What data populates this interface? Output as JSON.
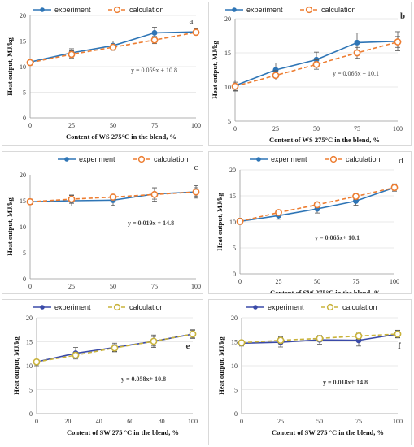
{
  "colors": {
    "experiment_blue": "#2e75b6",
    "calculation_orange": "#ed7d31",
    "experiment_navy": "#3a4aa8",
    "calculation_olive": "#c9b33b"
  },
  "chart_data": [
    {
      "type": "line",
      "panel_letter": "a",
      "xlabel": "Content of WS 275°C  in the blend, %",
      "ylabel": "Heat output, MJ/kg",
      "x": [
        0,
        25,
        50,
        75,
        100
      ],
      "xlim": [
        0,
        100
      ],
      "ylim": [
        0,
        20
      ],
      "yticks": [
        0,
        5,
        10,
        15,
        20
      ],
      "grid": true,
      "legend_position": "top",
      "equation": "y = 0.059x + 10.8",
      "series": [
        {
          "name": "experiment",
          "values": [
            10.9,
            12.7,
            14.1,
            16.6,
            16.8
          ],
          "errors": [
            0.6,
            0.8,
            0.9,
            1.1,
            0.6
          ]
        },
        {
          "name": "calculation",
          "values": [
            10.8,
            12.4,
            13.8,
            15.2,
            16.7
          ],
          "errors": [
            0.4,
            0.7,
            0.6,
            0.7,
            0.5
          ]
        }
      ]
    },
    {
      "type": "line",
      "panel_letter": "b",
      "xlabel": "Content of WS 275°C  in the blend, %",
      "ylabel": "Heat output, MJ/kg",
      "x": [
        0,
        25,
        50,
        75,
        100
      ],
      "xlim": [
        0,
        100
      ],
      "ylim": [
        5,
        20
      ],
      "yticks": [
        5,
        10,
        15,
        20
      ],
      "grid": true,
      "legend_position": "top",
      "equation": "y = 0.066x + 10.1",
      "series": [
        {
          "name": "experiment",
          "values": [
            10.2,
            12.5,
            14.0,
            16.5,
            16.7
          ],
          "errors": [
            0.8,
            1.0,
            1.1,
            1.4,
            1.4
          ]
        },
        {
          "name": "calculation",
          "values": [
            10.1,
            11.7,
            13.3,
            15.0,
            16.6
          ],
          "errors": [
            0.6,
            0.7,
            0.7,
            0.8,
            0.8
          ]
        }
      ]
    },
    {
      "type": "line",
      "panel_letter": "c",
      "xlabel": "Content of WS 275° in the blend, %",
      "ylabel": "Heat output, MJ/kg",
      "x": [
        0,
        25,
        50,
        75,
        100
      ],
      "xlim": [
        0,
        100
      ],
      "ylim": [
        0,
        20
      ],
      "yticks": [
        0,
        5,
        10,
        15,
        20
      ],
      "grid": false,
      "legend_position": "top",
      "equation": "y = 0.019x + 14.8",
      "series": [
        {
          "name": "experiment",
          "values": [
            14.8,
            15.0,
            15.1,
            16.3,
            16.7
          ],
          "errors": [
            0.5,
            1.0,
            1.0,
            1.0,
            1.2
          ]
        },
        {
          "name": "calculation",
          "values": [
            14.8,
            15.3,
            15.7,
            16.2,
            16.7
          ],
          "errors": [
            0.4,
            0.8,
            0.5,
            1.3,
            0.8
          ]
        }
      ]
    },
    {
      "type": "line",
      "panel_letter": "d",
      "xlabel": "Content of SW 275°C in the blend, %",
      "ylabel": "Heat output, MJ/kg",
      "x": [
        0,
        25,
        50,
        75,
        100
      ],
      "xlim": [
        0,
        100
      ],
      "ylim": [
        0,
        20
      ],
      "yticks": [
        0,
        5,
        10,
        15,
        20
      ],
      "grid": true,
      "legend_position": "top",
      "equation": "y = 0.065x+ 10.1",
      "series": [
        {
          "name": "experiment",
          "values": [
            10.1,
            11.2,
            12.5,
            14.0,
            16.6
          ],
          "errors": [
            0.6,
            0.7,
            0.8,
            0.8,
            0.7
          ]
        },
        {
          "name": "calculation",
          "values": [
            10.1,
            11.8,
            13.3,
            14.9,
            16.6
          ],
          "errors": [
            0.4,
            0.5,
            0.5,
            0.6,
            0.5
          ]
        }
      ]
    },
    {
      "type": "line",
      "panel_letter": "e",
      "xlabel": "Content of SW 275 °C in the blend, %",
      "ylabel": "Heat output, MJ/kg",
      "x": [
        0,
        25,
        50,
        75,
        100
      ],
      "xticks": [
        0,
        20,
        40,
        60,
        80,
        100
      ],
      "xlim": [
        0,
        100
      ],
      "ylim": [
        0,
        20
      ],
      "yticks": [
        0,
        5,
        10,
        15,
        20
      ],
      "grid": true,
      "legend_position": "top",
      "equation": "y = 0.058x+ 10.8",
      "series": [
        {
          "name": "experiment",
          "values": [
            10.8,
            12.6,
            13.8,
            15.1,
            16.6
          ],
          "errors": [
            0.8,
            1.2,
            0.9,
            1.0,
            0.8
          ]
        },
        {
          "name": "calculation",
          "values": [
            10.8,
            12.2,
            13.7,
            15.1,
            16.6
          ],
          "errors": [
            0.5,
            0.6,
            0.7,
            1.3,
            0.9
          ]
        }
      ]
    },
    {
      "type": "line",
      "panel_letter": "f",
      "xlabel": "Content of SW 275 °C in the blend, %",
      "ylabel": "Heat output, MJ/kg",
      "x": [
        0,
        25,
        50,
        75,
        100
      ],
      "xlim": [
        0,
        100
      ],
      "ylim": [
        0,
        20
      ],
      "yticks": [
        0,
        5,
        10,
        15,
        20
      ],
      "grid": true,
      "legend_position": "top",
      "equation": "y = 0.018x+ 14.8",
      "series": [
        {
          "name": "experiment",
          "values": [
            14.7,
            14.9,
            15.4,
            15.3,
            16.6
          ],
          "errors": [
            0.6,
            1.0,
            0.9,
            1.2,
            0.8
          ]
        },
        {
          "name": "calculation",
          "values": [
            14.8,
            15.3,
            15.7,
            16.2,
            16.6
          ],
          "errors": [
            0.5,
            0.7,
            0.6,
            0.6,
            0.7
          ]
        }
      ]
    }
  ]
}
